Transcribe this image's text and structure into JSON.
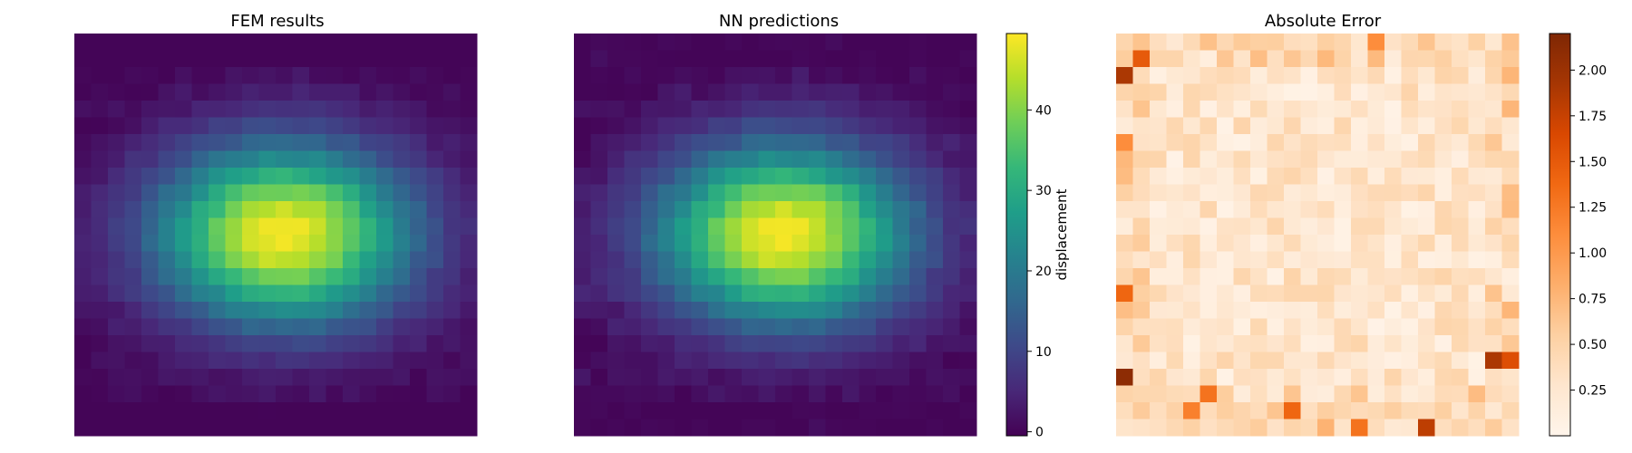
{
  "chart_data": [
    {
      "type": "heatmap",
      "title": "FEM results",
      "grid": [
        24,
        24
      ],
      "colormap": "viridis",
      "vmin": -0.5,
      "vmax": 49.5,
      "field": {
        "peak": 49,
        "center_x": 12,
        "center_y": 11.5,
        "sigma_x": 7.5,
        "sigma_y": 5.3,
        "boundary_dip": 4,
        "ripple": 1.2,
        "seed": 11
      }
    },
    {
      "type": "heatmap",
      "title": "NN predictions",
      "grid": [
        24,
        24
      ],
      "colormap": "viridis",
      "vmin": -0.5,
      "vmax": 49.5,
      "derived_from": "FEM results",
      "colorbar": {
        "label": "displacement",
        "ticks": [
          0,
          10,
          20,
          30,
          40
        ],
        "tick_labels": [
          "0",
          "10",
          "20",
          "30",
          "40"
        ]
      }
    },
    {
      "type": "heatmap",
      "title": "Absolute Error",
      "grid": [
        24,
        24
      ],
      "colormap": "oranges",
      "vmin": 0.0,
      "vmax": 2.2,
      "seed": 7,
      "hotspots": [
        {
          "row": 2,
          "col": 0,
          "value": 1.9
        },
        {
          "row": 1,
          "col": 1,
          "value": 1.5
        },
        {
          "row": 20,
          "col": 0,
          "value": 2.1
        },
        {
          "row": 19,
          "col": 22,
          "value": 1.9
        },
        {
          "row": 19,
          "col": 23,
          "value": 1.6
        },
        {
          "row": 23,
          "col": 18,
          "value": 1.8
        },
        {
          "row": 22,
          "col": 10,
          "value": 1.4
        },
        {
          "row": 21,
          "col": 5,
          "value": 1.3
        },
        {
          "row": 22,
          "col": 4,
          "value": 1.2
        },
        {
          "row": 15,
          "col": 0,
          "value": 1.4
        },
        {
          "row": 6,
          "col": 0,
          "value": 1.1
        },
        {
          "row": 0,
          "col": 15,
          "value": 1.1
        },
        {
          "row": 23,
          "col": 14,
          "value": 1.3
        }
      ],
      "colorbar": {
        "label": "",
        "ticks": [
          0.25,
          0.5,
          0.75,
          1.0,
          1.25,
          1.5,
          1.75,
          2.0
        ],
        "tick_labels": [
          "0.25",
          "0.50",
          "0.75",
          "1.00",
          "1.25",
          "1.50",
          "1.75",
          "2.00"
        ]
      }
    }
  ]
}
